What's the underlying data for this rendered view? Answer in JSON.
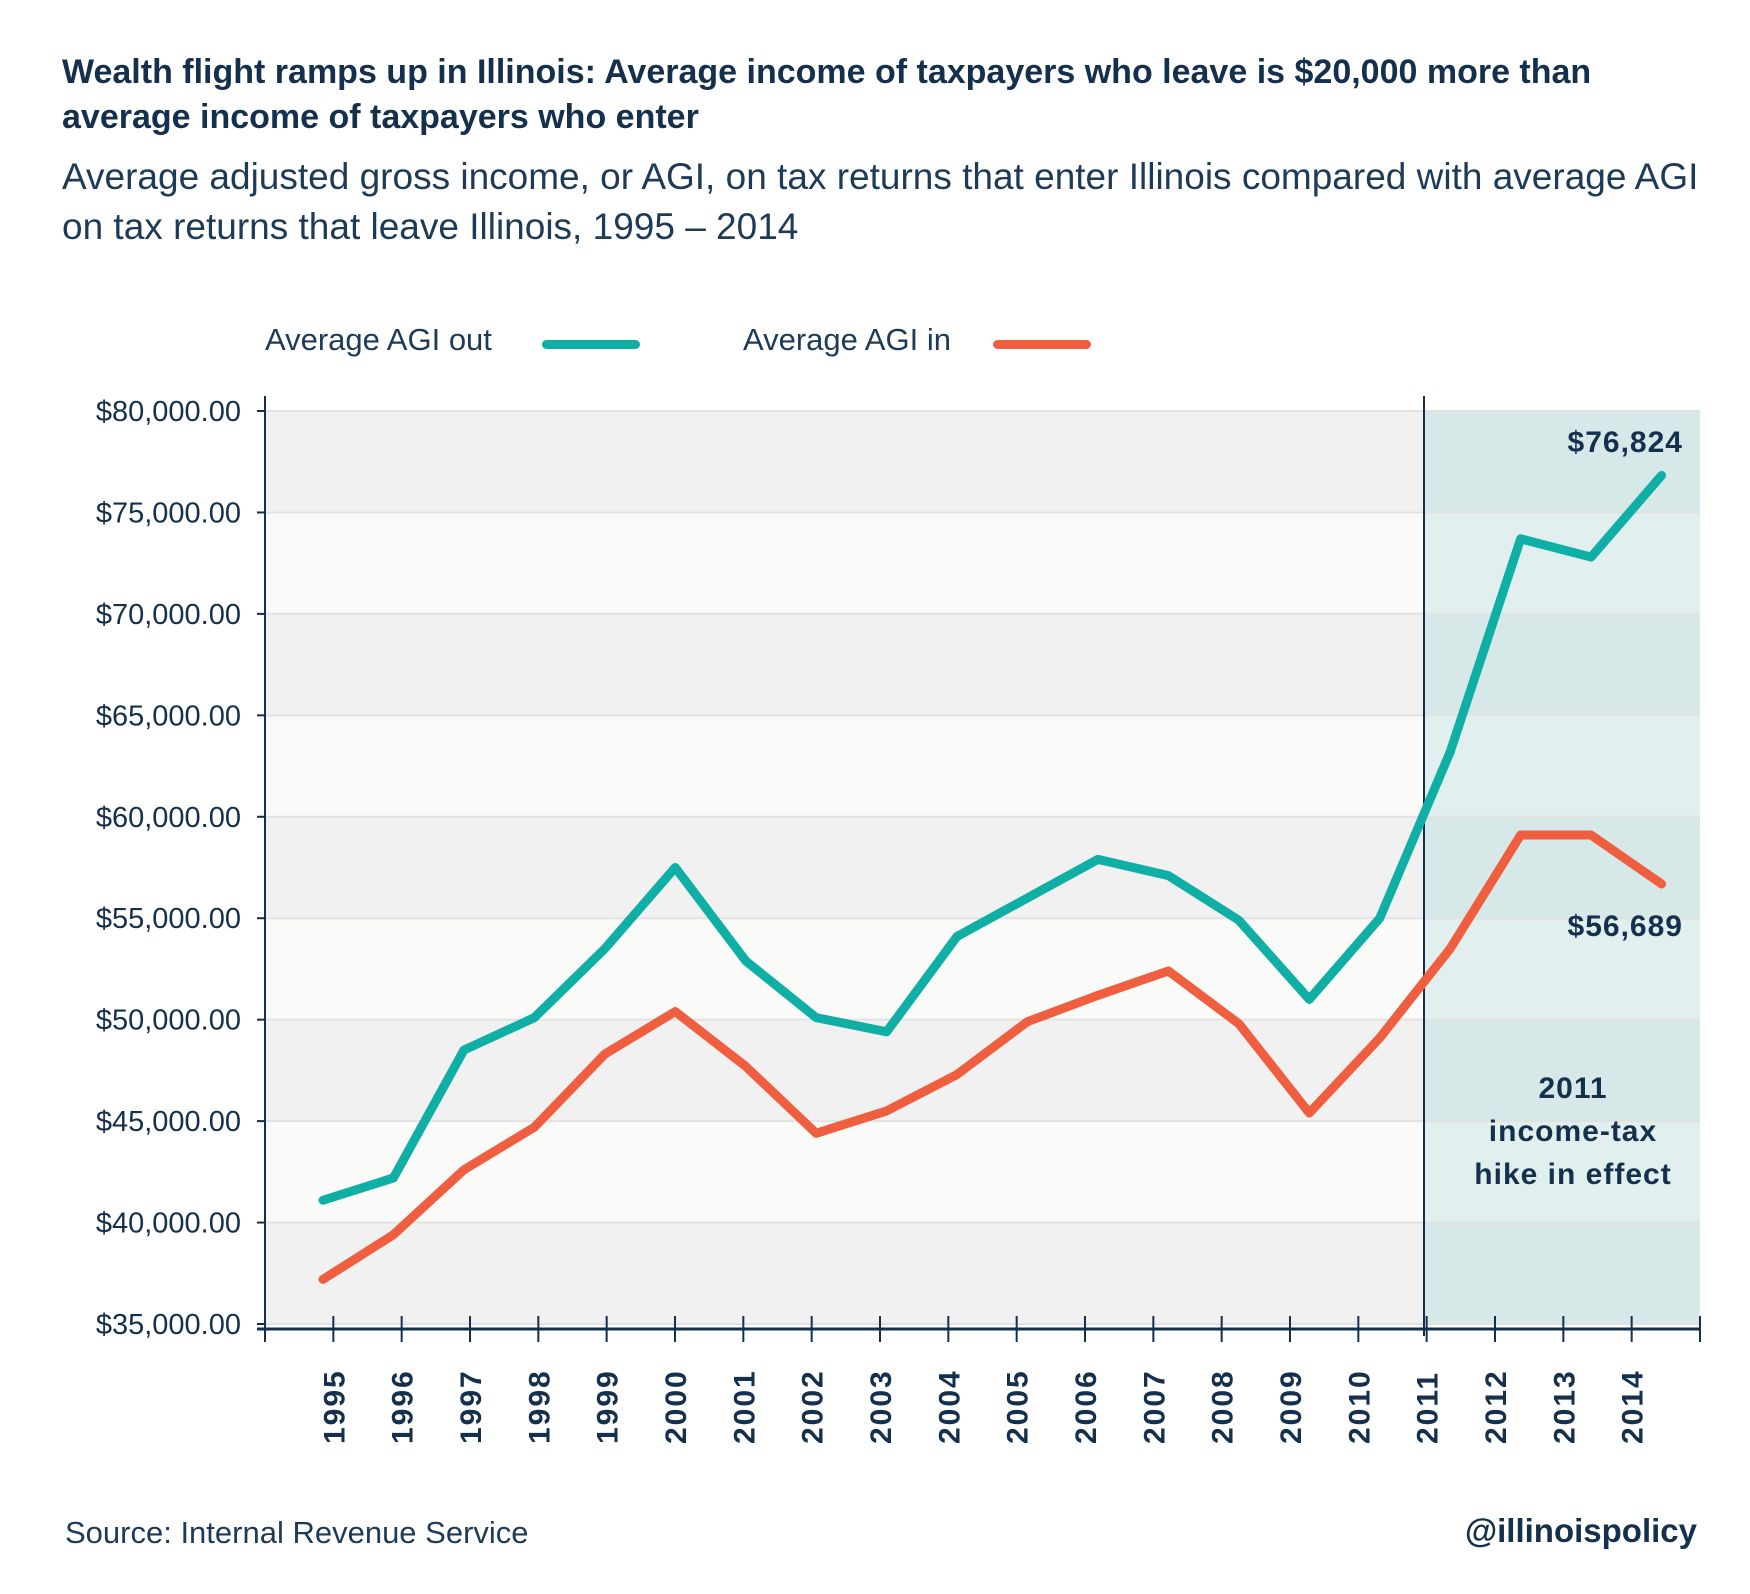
{
  "title": "Wealth flight ramps up in Illinois: Average income of taxpayers who leave is $20,000 more than average income of taxpayers who enter",
  "subtitle": "Average adjusted gross income, or AGI, on tax returns that enter Illinois compared with average AGI on tax returns that leave Illinois, 1995 – 2014",
  "source": "Source: Internal Revenue Service",
  "handle": "@illinoispolicy",
  "chart_data": {
    "type": "line",
    "x": [
      "1995",
      "1996",
      "1997",
      "1998",
      "1999",
      "2000",
      "2001",
      "2002",
      "2003",
      "2004",
      "2005",
      "2006",
      "2007",
      "2008",
      "2009",
      "2010",
      "2011",
      "2012",
      "2013",
      "2014"
    ],
    "series": [
      {
        "name": "Average AGI out",
        "color": "#0fafa5",
        "values": [
          41100,
          42200,
          48500,
          50100,
          53500,
          57500,
          52900,
          50100,
          49400,
          54100,
          56000,
          57900,
          57100,
          54900,
          51000,
          55000,
          63200,
          73700,
          72800,
          76824
        ]
      },
      {
        "name": "Average AGI in",
        "color": "#ef5f3f",
        "values": [
          37200,
          39400,
          42600,
          44700,
          48300,
          50400,
          47700,
          44400,
          45500,
          47300,
          49900,
          51200,
          52400,
          49800,
          45400,
          49100,
          53500,
          59100,
          59100,
          56689
        ]
      }
    ],
    "ylim": [
      35000,
      80000
    ],
    "yticks": [
      "$35,000.00",
      "$40,000.00",
      "$45,000.00",
      "$50,000.00",
      "$55,000.00",
      "$60,000.00",
      "$65,000.00",
      "$70,000.00",
      "$75,000.00",
      "$80,000.00"
    ],
    "ytick_values": [
      35000,
      40000,
      45000,
      50000,
      55000,
      60000,
      65000,
      70000,
      75000,
      80000
    ],
    "grid": true,
    "legend_position": "top",
    "highlight": {
      "from": "2011",
      "color": "#d7e9e8",
      "label_lines": [
        "2011",
        "income-tax",
        "hike in effect"
      ]
    },
    "annotations": {
      "out_last": "$76,824",
      "in_last": "$56,689"
    }
  }
}
